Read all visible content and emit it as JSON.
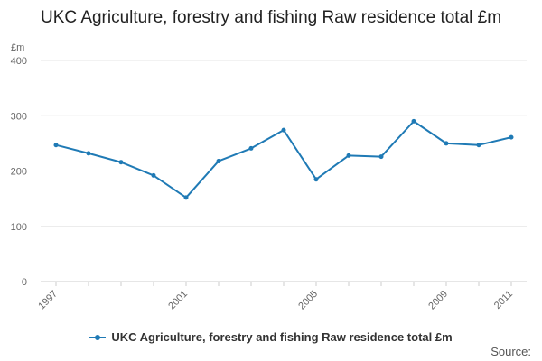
{
  "page": {
    "title": "UKC Agriculture, forestry and fishing Raw residence total £m",
    "source_label": "Source:"
  },
  "colors": {
    "series": "#1f7ab5",
    "grid": "#e6e6e6",
    "axis": "#cccccc",
    "text": "#666666"
  },
  "chart_data": {
    "type": "line",
    "title": "UKC Agriculture, forestry and fishing Raw residence total £m",
    "ylabel": "£m",
    "xlabel": "",
    "ylim": [
      0,
      400
    ],
    "yticks": [
      0,
      100,
      200,
      300,
      400
    ],
    "x": [
      1997,
      1998,
      1999,
      2000,
      2001,
      2002,
      2003,
      2004,
      2005,
      2006,
      2007,
      2008,
      2009,
      2010,
      2011
    ],
    "xtick_labels": [
      "1997",
      "2001",
      "2005",
      "2009",
      "2011"
    ],
    "grid": true,
    "legend_position": "bottom",
    "series": [
      {
        "name": "UKC Agriculture, forestry and fishing Raw residence total £m",
        "values": [
          247,
          232,
          216,
          192,
          152,
          218,
          241,
          274,
          185,
          228,
          226,
          290,
          250,
          247,
          261
        ]
      }
    ]
  }
}
